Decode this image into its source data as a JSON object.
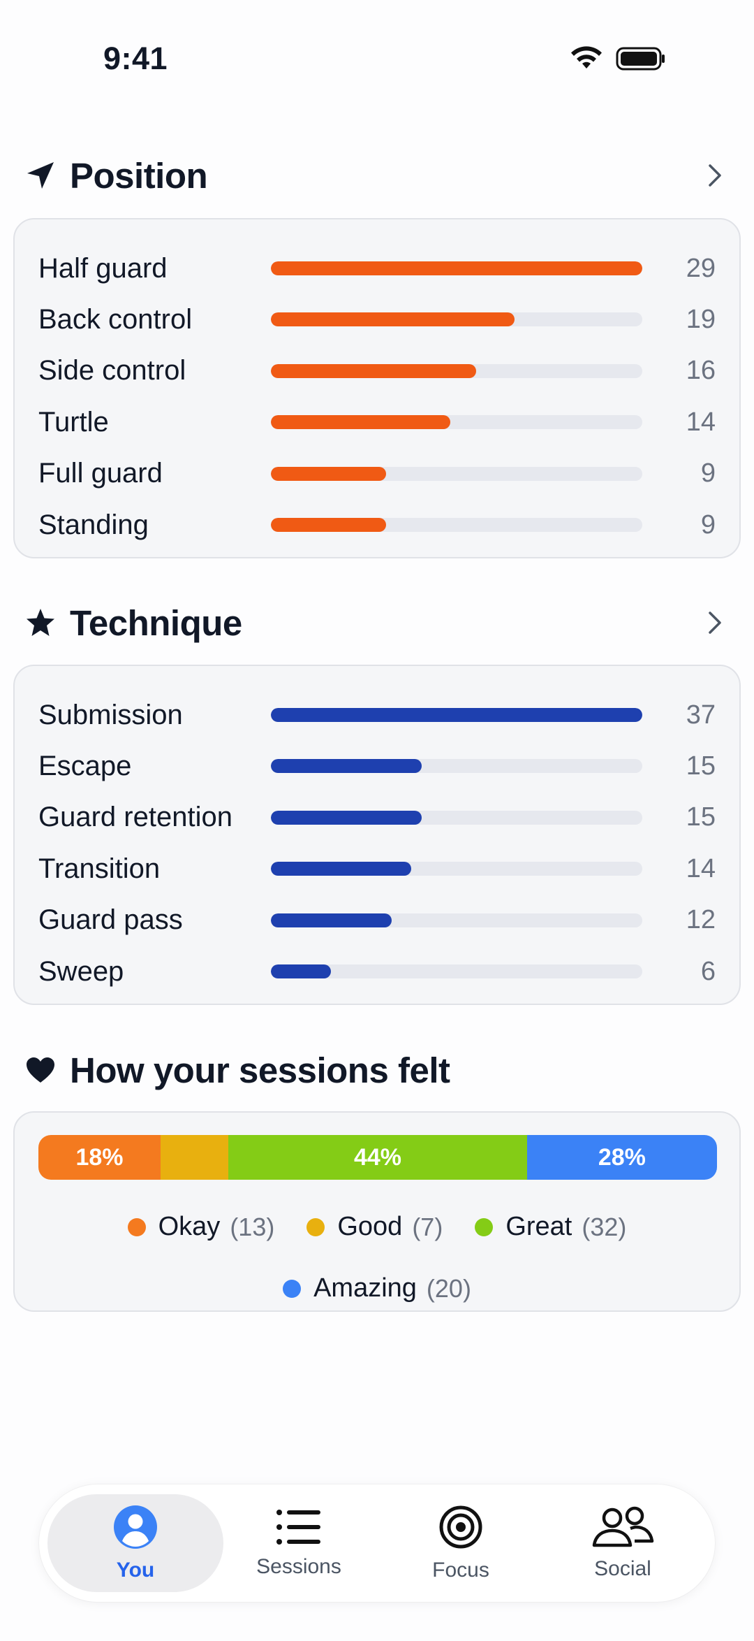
{
  "status": {
    "time": "9:41"
  },
  "position": {
    "title": "Position",
    "icon": "location-arrow-icon",
    "color": "#f05a14",
    "max": 29,
    "items": [
      {
        "label": "Half guard",
        "count": 29
      },
      {
        "label": "Back control",
        "count": 19
      },
      {
        "label": "Side control",
        "count": 16
      },
      {
        "label": "Turtle",
        "count": 14
      },
      {
        "label": "Full guard",
        "count": 9
      },
      {
        "label": "Standing",
        "count": 9
      }
    ]
  },
  "technique": {
    "title": "Technique",
    "icon": "star-icon",
    "color": "#1e40af",
    "max": 37,
    "items": [
      {
        "label": "Submission",
        "count": 37
      },
      {
        "label": "Escape",
        "count": 15
      },
      {
        "label": "Guard retention",
        "count": 15
      },
      {
        "label": "Transition",
        "count": 14
      },
      {
        "label": "Guard pass",
        "count": 12
      },
      {
        "label": "Sweep",
        "count": 6
      }
    ]
  },
  "feelings": {
    "title": "How your sessions felt",
    "icon": "heart-icon",
    "segments": [
      {
        "name": "Okay",
        "count": "(13)",
        "percent": 18,
        "label": "18%",
        "color": "#f47a1f"
      },
      {
        "name": "Good",
        "count": "(7)",
        "percent": 10,
        "label": "",
        "color": "#e8b00f"
      },
      {
        "name": "Great",
        "count": "(32)",
        "percent": 44,
        "label": "44%",
        "color": "#84cc16"
      },
      {
        "name": "Amazing",
        "count": "(20)",
        "percent": 28,
        "label": "28%",
        "color": "#3b82f6"
      }
    ]
  },
  "tabs": [
    {
      "label": "You",
      "icon": "person-icon",
      "active": true
    },
    {
      "label": "Sessions",
      "icon": "list-icon",
      "active": false
    },
    {
      "label": "Focus",
      "icon": "target-icon",
      "active": false
    },
    {
      "label": "Social",
      "icon": "people-icon",
      "active": false
    }
  ]
}
